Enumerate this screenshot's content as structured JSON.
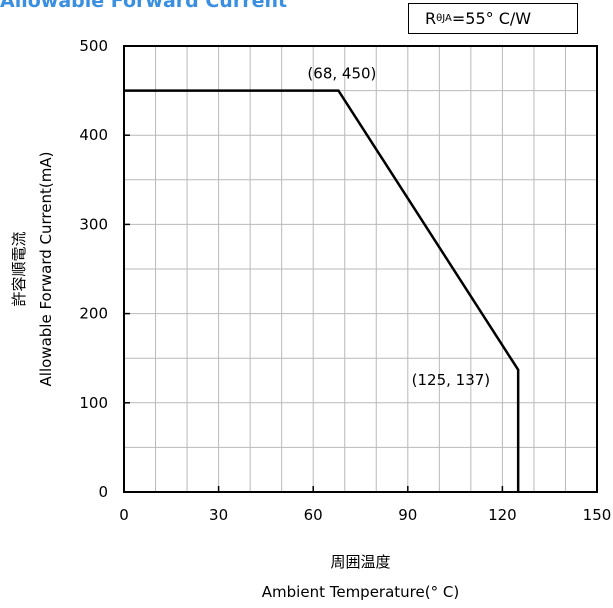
{
  "title": "Allowable Forward Current",
  "rtheta": {
    "symbol": "R",
    "subscript": "θJA",
    "value": " =55°  C/W"
  },
  "chart_data": {
    "type": "line",
    "xlim": [
      0,
      150
    ],
    "ylim": [
      0,
      500
    ],
    "xticks": [
      0,
      30,
      60,
      90,
      120,
      150
    ],
    "yticks": [
      0,
      100,
      200,
      300,
      400,
      500
    ],
    "x_minor_step": 10,
    "y_minor_step": 50,
    "grid": true,
    "xlabel_jp": "周囲温度",
    "xlabel": "Ambient Temperature(°  C)",
    "ylabel_jp": "許容順電流",
    "ylabel": "Allowable Forward Current(mA)",
    "series": [
      {
        "x": [
          0,
          68,
          125,
          125
        ],
        "y": [
          450,
          450,
          137,
          0
        ]
      }
    ],
    "annotations": [
      {
        "text": "(68, 450)",
        "x": 68,
        "y": 450
      },
      {
        "text": "(125, 137)",
        "x": 125,
        "y": 137
      }
    ]
  }
}
